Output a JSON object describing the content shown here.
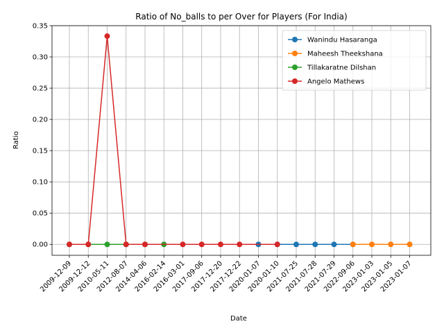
{
  "chart_data": {
    "type": "line",
    "title": "Ratio of No_balls to per Over for Players (For India)",
    "xlabel": "Date",
    "ylabel": "Ratio",
    "ylim": [
      -0.0175,
      0.35
    ],
    "yticks": [
      "0.00",
      "0.05",
      "0.10",
      "0.15",
      "0.20",
      "0.25",
      "0.30",
      "0.35"
    ],
    "ytick_values": [
      0,
      0.05,
      0.1,
      0.15,
      0.2,
      0.25,
      0.3,
      0.35
    ],
    "grid": true,
    "legend_position": "top-right",
    "categories": [
      "2009-12-09",
      "2009-12-12",
      "2010-05-11",
      "2012-08-07",
      "2014-04-06",
      "2016-02-14",
      "2016-03-01",
      "2017-09-06",
      "2017-12-20",
      "2017-12-22",
      "2020-01-07",
      "2020-01-10",
      "2021-07-25",
      "2021-07-28",
      "2021-07-29",
      "2022-09-06",
      "2023-01-03",
      "2023-01-05",
      "2023-01-07"
    ],
    "series": [
      {
        "name": "Wanindu Hasaranga",
        "color": "#1f77b4",
        "points": [
          {
            "x": "2020-01-07",
            "y": 0
          },
          {
            "x": "2020-01-10",
            "y": 0
          },
          {
            "x": "2021-07-25",
            "y": 0
          },
          {
            "x": "2021-07-28",
            "y": 0
          },
          {
            "x": "2021-07-29",
            "y": 0
          },
          {
            "x": "2022-09-06",
            "y": 0
          }
        ]
      },
      {
        "name": "Maheesh Theekshana",
        "color": "#ff7f0e",
        "points": [
          {
            "x": "2022-09-06",
            "y": 0
          },
          {
            "x": "2023-01-03",
            "y": 0
          },
          {
            "x": "2023-01-05",
            "y": 0
          },
          {
            "x": "2023-01-07",
            "y": 0
          }
        ]
      },
      {
        "name": "Tillakaratne Dilshan",
        "color": "#2ca02c",
        "points": [
          {
            "x": "2009-12-09",
            "y": 0
          },
          {
            "x": "2009-12-12",
            "y": 0
          },
          {
            "x": "2010-05-11",
            "y": 0
          },
          {
            "x": "2012-08-07",
            "y": 0
          },
          {
            "x": "2014-04-06",
            "y": 0
          },
          {
            "x": "2016-02-14",
            "y": 0
          }
        ]
      },
      {
        "name": "Angelo Mathews",
        "color": "#d62728",
        "points": [
          {
            "x": "2009-12-09",
            "y": 0
          },
          {
            "x": "2009-12-12",
            "y": 0
          },
          {
            "x": "2010-05-11",
            "y": 0.3333
          },
          {
            "x": "2012-08-07",
            "y": 0
          },
          {
            "x": "2014-04-06",
            "y": 0
          },
          {
            "x": "2016-03-01",
            "y": 0
          },
          {
            "x": "2017-09-06",
            "y": 0
          },
          {
            "x": "2017-12-20",
            "y": 0
          },
          {
            "x": "2017-12-22",
            "y": 0
          },
          {
            "x": "2020-01-10",
            "y": 0
          }
        ]
      }
    ]
  }
}
